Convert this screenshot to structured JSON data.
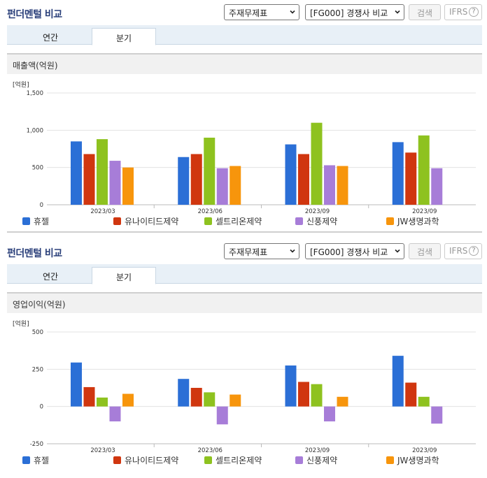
{
  "panels": [
    {
      "title": "펀더멘털 비교",
      "select_indicator": "주재무제표",
      "select_compare": "[FG000] 경쟁사 비교",
      "search_button": "검색",
      "ifrs_label": "IFRS",
      "help_label": "?",
      "tabs": [
        "연간",
        "분기"
      ],
      "active_tab": "분기",
      "chart_title": "매출액(억원)",
      "unit_label": "[억원]"
    },
    {
      "title": "펀더멘털 비교",
      "select_indicator": "주재무제표",
      "select_compare": "[FG000] 경쟁사 비교",
      "search_button": "검색",
      "ifrs_label": "IFRS",
      "help_label": "?",
      "tabs": [
        "연간",
        "분기"
      ],
      "active_tab": "분기",
      "chart_title": "영업이익(억원)",
      "unit_label": "[억원]"
    }
  ],
  "colors": {
    "휴젤": "#2b6fd6",
    "유나이티드제약": "#d0360f",
    "셀트리온제약": "#8ec21f",
    "신풍제약": "#a77dd8",
    "JW생명과학": "#f7950c"
  },
  "chart_data": [
    {
      "type": "bar",
      "title": "매출액(억원)",
      "unit": "[억원]",
      "categories": [
        "2023/03",
        "2023/06",
        "2023/09",
        "2023/09"
      ],
      "ylim": [
        0,
        1500
      ],
      "yticks": [
        0,
        500,
        1000,
        1500
      ],
      "ytick_labels": [
        "0",
        "500",
        "1,000",
        "1,500"
      ],
      "grid": true,
      "legend_position": "bottom",
      "series": [
        {
          "name": "휴젤",
          "values": [
            850,
            640,
            810,
            840
          ]
        },
        {
          "name": "유나이티드제약",
          "values": [
            680,
            680,
            680,
            700
          ]
        },
        {
          "name": "셀트리온제약",
          "values": [
            880,
            900,
            1100,
            930
          ]
        },
        {
          "name": "신풍제약",
          "values": [
            590,
            490,
            530,
            490
          ]
        },
        {
          "name": "JW생명과학",
          "values": [
            500,
            520,
            520,
            null
          ]
        }
      ]
    },
    {
      "type": "bar",
      "title": "영업이익(억원)",
      "unit": "[억원]",
      "categories": [
        "2023/03",
        "2023/06",
        "2023/09",
        "2023/09"
      ],
      "ylim": [
        -250,
        500
      ],
      "yticks": [
        -250,
        0,
        250,
        500
      ],
      "ytick_labels": [
        "-250",
        "0",
        "250",
        "500"
      ],
      "grid": true,
      "legend_position": "bottom",
      "series": [
        {
          "name": "휴젤",
          "values": [
            295,
            185,
            275,
            340
          ]
        },
        {
          "name": "유나이티드제약",
          "values": [
            130,
            125,
            165,
            160
          ]
        },
        {
          "name": "셀트리온제약",
          "values": [
            60,
            95,
            150,
            65
          ]
        },
        {
          "name": "신풍제약",
          "values": [
            -100,
            -120,
            -100,
            -115
          ]
        },
        {
          "name": "JW생명과학",
          "values": [
            85,
            80,
            65,
            null
          ]
        }
      ]
    }
  ]
}
